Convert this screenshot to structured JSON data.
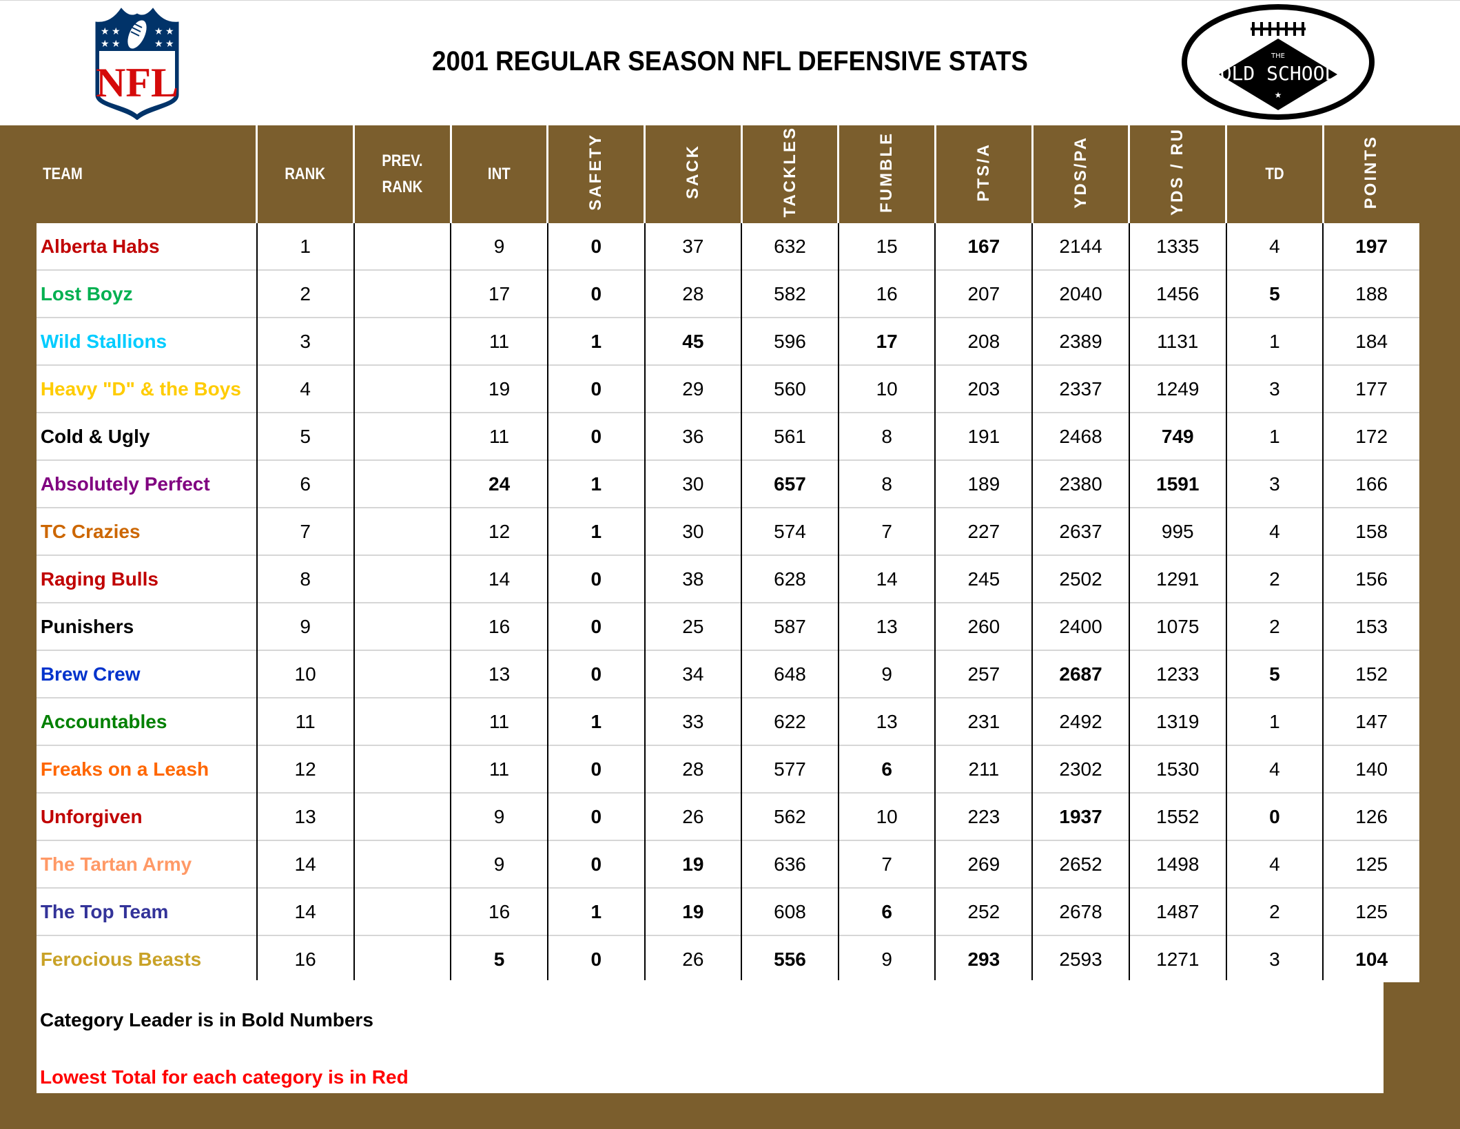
{
  "header": {
    "title": "2001 REGULAR SEASON NFL DEFENSIVE STATS",
    "left_logo": "nfl-shield-logo",
    "right_logo": "old-school-football-logo",
    "right_logo_text_top": "THE",
    "right_logo_text_main": "OLD SCHOOL"
  },
  "colors": {
    "frame_brown": "#7b5e2d",
    "lowest_red": "#ff0000",
    "leader_bold": "#000000"
  },
  "table": {
    "columns": [
      "TEAM",
      "RANK",
      "PREV. RANK",
      "INT",
      "SAFETY",
      "SACK",
      "TACKLES",
      "FUMBLE",
      "PTS/A",
      "YDS/PA",
      "YDS / RU",
      "TD",
      "POINTS"
    ],
    "column_labels": {
      "team": "TEAM",
      "rank": "RANK",
      "prev_rank_1": "PREV.",
      "prev_rank_2": "RANK",
      "int": "INT",
      "safety": "SAFETY",
      "sack": "SACK",
      "tackles": "TACKLES",
      "fumble": "FUMBLE",
      "pts_a": "PTS/A",
      "yds_pa": "YDS/PA",
      "yds_ru": "YDS / RU",
      "td": "TD",
      "points": "POINTS"
    },
    "rows": [
      {
        "team": "Alberta Habs",
        "team_color": "#c00000",
        "rank": "1",
        "prev_rank": "",
        "int": "9",
        "safety": "0",
        "sack": "37",
        "tackles": "632",
        "fumble": "15",
        "pts_a": "167",
        "yds_pa": "2144",
        "yds_ru": "1335",
        "td": "4",
        "points": "197",
        "bold": [
          "pts_a",
          "points"
        ],
        "red": [
          "safety"
        ]
      },
      {
        "team": "Lost Boyz",
        "team_color": "#00b050",
        "rank": "2",
        "prev_rank": "",
        "int": "17",
        "safety": "0",
        "sack": "28",
        "tackles": "582",
        "fumble": "16",
        "pts_a": "207",
        "yds_pa": "2040",
        "yds_ru": "1456",
        "td": "5",
        "points": "188",
        "bold": [
          "td"
        ],
        "red": [
          "safety"
        ]
      },
      {
        "team": "Wild Stallions",
        "team_color": "#00ccff",
        "rank": "3",
        "prev_rank": "",
        "int": "11",
        "safety": "1",
        "sack": "45",
        "tackles": "596",
        "fumble": "17",
        "pts_a": "208",
        "yds_pa": "2389",
        "yds_ru": "1131",
        "td": "1",
        "points": "184",
        "bold": [
          "safety",
          "sack",
          "fumble"
        ],
        "red": []
      },
      {
        "team": "Heavy \"D\" & the Boys",
        "team_color": "#ffcc00",
        "rank": "4",
        "prev_rank": "",
        "int": "19",
        "safety": "0",
        "sack": "29",
        "tackles": "560",
        "fumble": "10",
        "pts_a": "203",
        "yds_pa": "2337",
        "yds_ru": "1249",
        "td": "3",
        "points": "177",
        "bold": [],
        "red": [
          "safety"
        ]
      },
      {
        "team": "Cold & Ugly",
        "team_color": "#000000",
        "rank": "5",
        "prev_rank": "",
        "int": "11",
        "safety": "0",
        "sack": "36",
        "tackles": "561",
        "fumble": "8",
        "pts_a": "191",
        "yds_pa": "2468",
        "yds_ru": "749",
        "td": "1",
        "points": "172",
        "bold": [
          "yds_ru"
        ],
        "red": [
          "safety"
        ]
      },
      {
        "team": "Absolutely Perfect",
        "team_color": "#800080",
        "rank": "6",
        "prev_rank": "",
        "int": "24",
        "safety": "1",
        "sack": "30",
        "tackles": "657",
        "fumble": "8",
        "pts_a": "189",
        "yds_pa": "2380",
        "yds_ru": "1591",
        "td": "3",
        "points": "166",
        "bold": [
          "int",
          "safety",
          "tackles"
        ],
        "red": [
          "yds_ru"
        ]
      },
      {
        "team": "TC Crazies",
        "team_color": "#cc6600",
        "rank": "7",
        "prev_rank": "",
        "int": "12",
        "safety": "1",
        "sack": "30",
        "tackles": "574",
        "fumble": "7",
        "pts_a": "227",
        "yds_pa": "2637",
        "yds_ru": "995",
        "td": "4",
        "points": "158",
        "bold": [
          "safety"
        ],
        "red": []
      },
      {
        "team": "Raging Bulls",
        "team_color": "#c00000",
        "rank": "8",
        "prev_rank": "",
        "int": "14",
        "safety": "0",
        "sack": "38",
        "tackles": "628",
        "fumble": "14",
        "pts_a": "245",
        "yds_pa": "2502",
        "yds_ru": "1291",
        "td": "2",
        "points": "156",
        "bold": [],
        "red": [
          "safety"
        ]
      },
      {
        "team": "Punishers",
        "team_color": "#000000",
        "rank": "9",
        "prev_rank": "",
        "int": "16",
        "safety": "0",
        "sack": "25",
        "tackles": "587",
        "fumble": "13",
        "pts_a": "260",
        "yds_pa": "2400",
        "yds_ru": "1075",
        "td": "2",
        "points": "153",
        "bold": [],
        "red": [
          "safety"
        ]
      },
      {
        "team": "Brew Crew",
        "team_color": "#0033cc",
        "rank": "10",
        "prev_rank": "",
        "int": "13",
        "safety": "0",
        "sack": "34",
        "tackles": "648",
        "fumble": "9",
        "pts_a": "257",
        "yds_pa": "2687",
        "yds_ru": "1233",
        "td": "5",
        "points": "152",
        "bold": [
          "td"
        ],
        "red": [
          "safety",
          "yds_pa"
        ]
      },
      {
        "team": "Accountables",
        "team_color": "#008000",
        "rank": "11",
        "prev_rank": "",
        "int": "11",
        "safety": "1",
        "sack": "33",
        "tackles": "622",
        "fumble": "13",
        "pts_a": "231",
        "yds_pa": "2492",
        "yds_ru": "1319",
        "td": "1",
        "points": "147",
        "bold": [
          "safety"
        ],
        "red": []
      },
      {
        "team": "Freaks on a Leash",
        "team_color": "#ff6600",
        "rank": "12",
        "prev_rank": "",
        "int": "11",
        "safety": "0",
        "sack": "28",
        "tackles": "577",
        "fumble": "6",
        "pts_a": "211",
        "yds_pa": "2302",
        "yds_ru": "1530",
        "td": "4",
        "points": "140",
        "bold": [],
        "red": [
          "safety",
          "fumble"
        ]
      },
      {
        "team": "Unforgiven",
        "team_color": "#c00000",
        "rank": "13",
        "prev_rank": "",
        "int": "9",
        "safety": "0",
        "sack": "26",
        "tackles": "562",
        "fumble": "10",
        "pts_a": "223",
        "yds_pa": "1937",
        "yds_ru": "1552",
        "td": "0",
        "points": "126",
        "bold": [
          "yds_pa"
        ],
        "red": [
          "safety",
          "td"
        ]
      },
      {
        "team": "The Tartan Army",
        "team_color": "#ff9966",
        "rank": "14",
        "prev_rank": "",
        "int": "9",
        "safety": "0",
        "sack": "19",
        "tackles": "636",
        "fumble": "7",
        "pts_a": "269",
        "yds_pa": "2652",
        "yds_ru": "1498",
        "td": "4",
        "points": "125",
        "bold": [],
        "red": [
          "safety",
          "sack"
        ]
      },
      {
        "team": "The Top Team",
        "team_color": "#333399",
        "rank": "14",
        "prev_rank": "",
        "int": "16",
        "safety": "1",
        "sack": "19",
        "tackles": "608",
        "fumble": "6",
        "pts_a": "252",
        "yds_pa": "2678",
        "yds_ru": "1487",
        "td": "2",
        "points": "125",
        "bold": [
          "safety"
        ],
        "red": [
          "sack",
          "fumble"
        ]
      },
      {
        "team": "Ferocious Beasts",
        "team_color": "#c9a227",
        "rank": "16",
        "prev_rank": "",
        "int": "5",
        "safety": "0",
        "sack": "26",
        "tackles": "556",
        "fumble": "9",
        "pts_a": "293",
        "yds_pa": "2593",
        "yds_ru": "1271",
        "td": "3",
        "points": "104",
        "bold": [],
        "red": [
          "int",
          "safety",
          "tackles",
          "pts_a",
          "points"
        ]
      }
    ]
  },
  "legend": {
    "bold_note": "Category Leader is in Bold Numbers",
    "red_note": "Lowest Total for each category is in Red"
  }
}
